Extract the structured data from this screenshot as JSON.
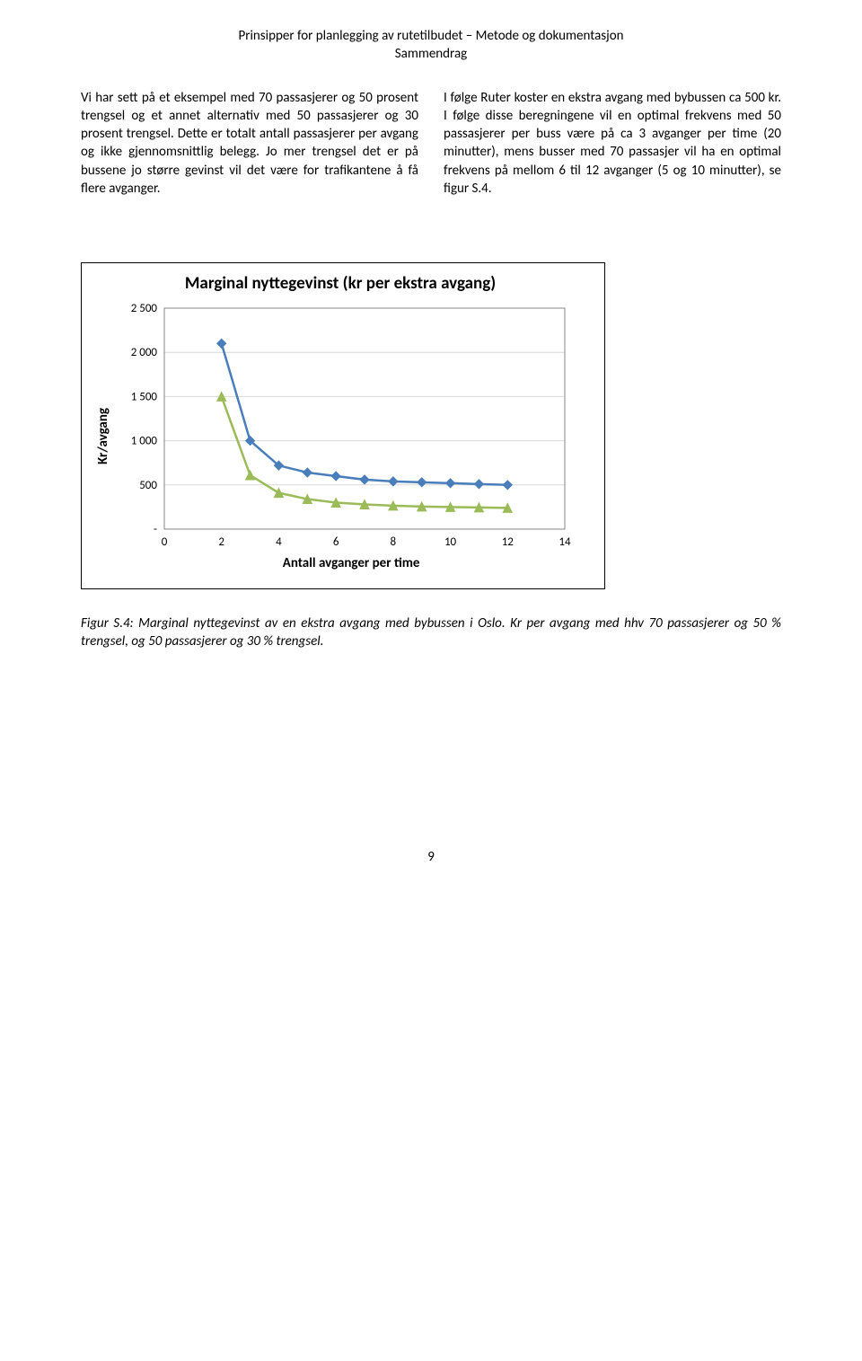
{
  "header": {
    "line1": "Prinsipper for planlegging av rutetilbudet – Metode og dokumentasjon",
    "line2": "Sammendrag"
  },
  "body": {
    "col1": "Vi har sett på et eksempel med 70 passasjerer og 50 prosent trengsel og et annet alternativ med 50 passasjerer og 30 prosent trengsel. Dette er totalt antall passasjerer per avgang og ikke gjennomsnittlig belegg. Jo mer trengsel det er på bussene jo større gevinst vil det være for trafikantene å få flere avganger.",
    "col2": "I følge Ruter koster en ekstra avgang med bybussen ca 500 kr. I følge disse beregningene vil en optimal frekvens med 50 passasjerer per buss være på ca 3 avganger per time (20 minutter), mens busser med 70 passasjer vil ha en optimal frekvens på mellom 6 til 12 avganger (5 og 10 minutter), se figur S.4."
  },
  "chart": {
    "title": "Marginal nyttegevinst (kr per ekstra avgang)",
    "ylabel": "Kr/avgang",
    "xlabel": "Antall avganger per time",
    "xlim": [
      0,
      14
    ],
    "ylim": [
      0,
      2500
    ],
    "xticks": [
      0,
      2,
      4,
      6,
      8,
      10,
      12,
      14
    ],
    "xtick_labels": [
      "0",
      "2",
      "4",
      "6",
      "8",
      "10",
      "12",
      "14"
    ],
    "yticks": [
      0,
      500,
      1000,
      1500,
      2000,
      2500
    ],
    "ytick_labels": [
      "-",
      "500",
      "1 000",
      "1 500",
      "2 000",
      "2 500"
    ],
    "plot_area_border_color": "#868686",
    "grid_color": "#d9d9d9",
    "background_color": "#ffffff",
    "tick_font_size": 13,
    "line_width": 2.5,
    "marker_size": 5,
    "series_blue": {
      "color": "#4a7ebb",
      "marker_fill": "#4a7ebb",
      "marker_shape": "diamond",
      "x": [
        2,
        3,
        4,
        5,
        6,
        7,
        8,
        9,
        10,
        11,
        12
      ],
      "y": [
        2100,
        1000,
        720,
        640,
        600,
        560,
        540,
        530,
        520,
        510,
        500
      ]
    },
    "series_green": {
      "color": "#9bbb59",
      "marker_fill": "#9bbb59",
      "marker_shape": "triangle",
      "x": [
        2,
        3,
        4,
        5,
        6,
        7,
        8,
        9,
        10,
        11,
        12
      ],
      "y": [
        1500,
        610,
        410,
        340,
        300,
        280,
        265,
        255,
        250,
        245,
        240
      ]
    }
  },
  "caption": "Figur S.4: Marginal nyttegevinst av en ekstra avgang med bybussen i Oslo. Kr per avgang med hhv 70 passasjerer og 50 % trengsel, og 50 passasjerer og 30 % trengsel.",
  "page_number": "9"
}
